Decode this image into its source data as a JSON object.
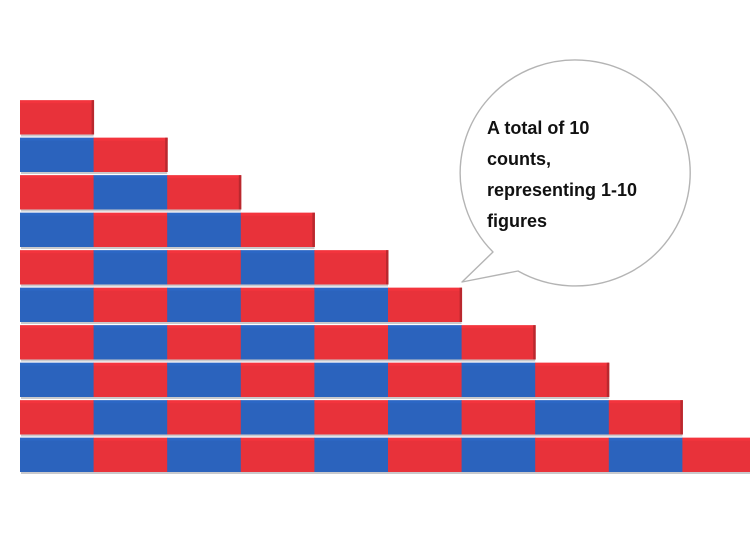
{
  "image": {
    "subject": "number-rods",
    "colors": {
      "red": "#e8323a",
      "blue": "#2b63bd",
      "shadow": "#c9c9cc"
    },
    "rods": [
      {
        "count": 1
      },
      {
        "count": 2
      },
      {
        "count": 3
      },
      {
        "count": 4
      },
      {
        "count": 5
      },
      {
        "count": 6
      },
      {
        "count": 7
      },
      {
        "count": 8
      },
      {
        "count": 9
      },
      {
        "count": 10
      }
    ]
  },
  "bubble": {
    "lines": [
      "A total of 10",
      "counts,",
      "representing 1-10",
      "figures"
    ]
  }
}
